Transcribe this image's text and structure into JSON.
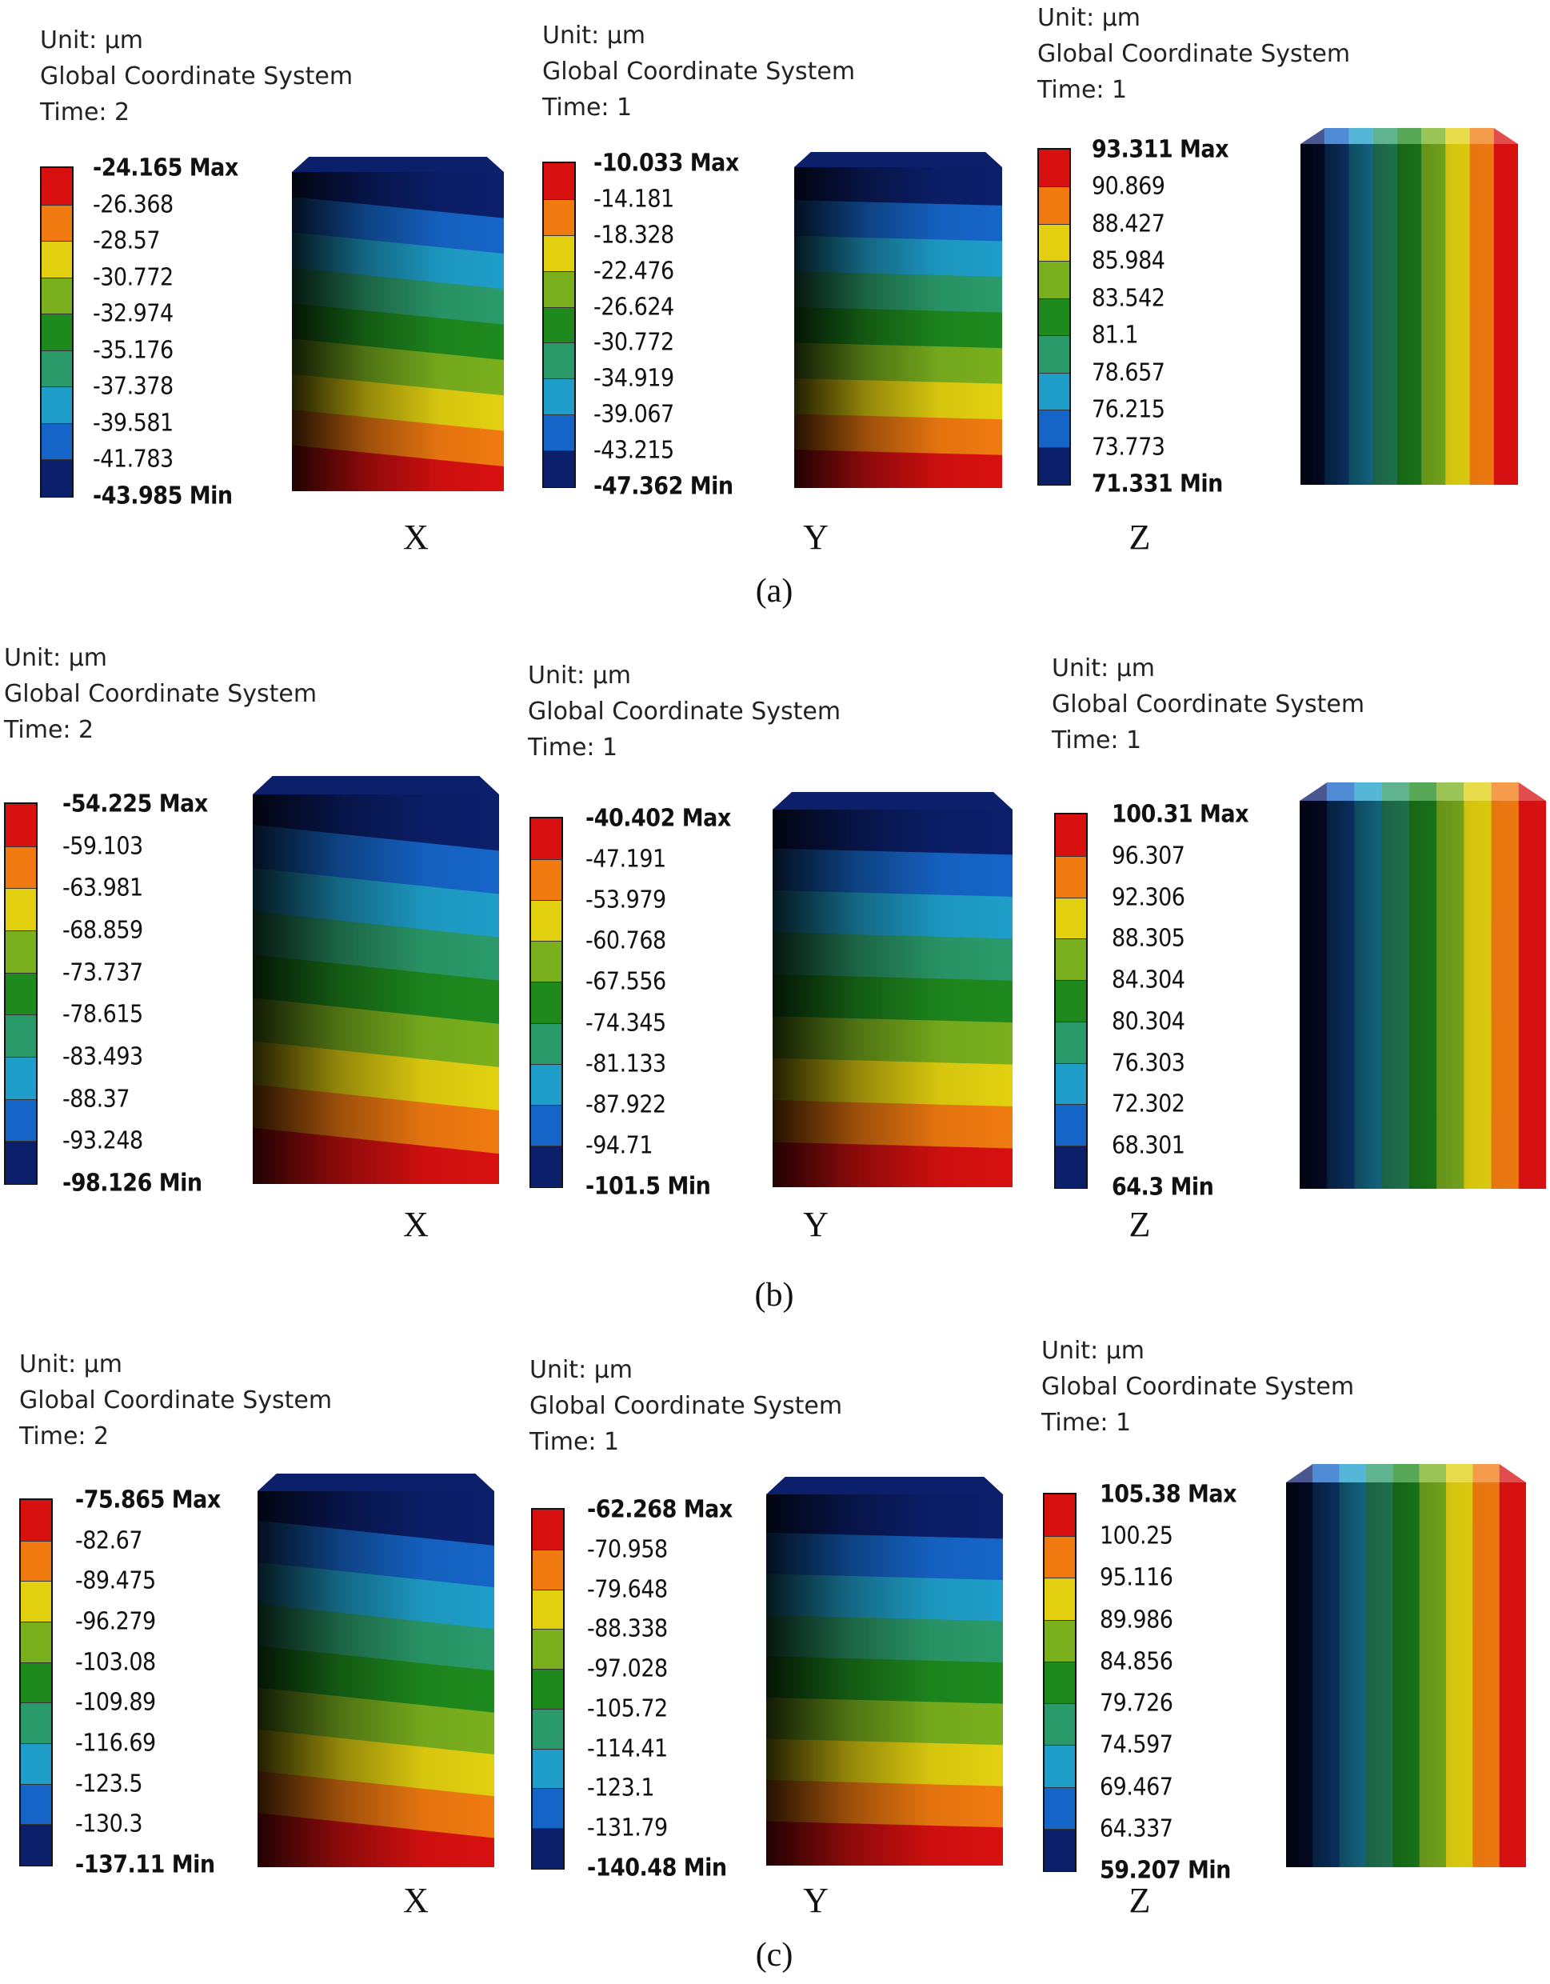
{
  "colors": [
    "#0b1f6b",
    "#1565c8",
    "#1e9ec9",
    "#2a9a6a",
    "#1e8a1e",
    "#7ab01e",
    "#e2d010",
    "#f07a10",
    "#d81010"
  ],
  "figure": {
    "panels": [
      {
        "caption": "(a)",
        "plots": [
          {
            "axis": "X",
            "unit": "Unit: µm",
            "system": "Global Coordinate System",
            "time": "Time: 2",
            "labels": [
              "-24.165 Max",
              "-26.368",
              "-28.57",
              "-30.772",
              "-32.974",
              "-35.176",
              "-37.378",
              "-39.581",
              "-41.783",
              "-43.985 Min"
            ]
          },
          {
            "axis": "Y",
            "unit": "Unit: µm",
            "system": "Global Coordinate System",
            "time": "Time: 1",
            "labels": [
              "-10.033 Max",
              "-14.181",
              "-18.328",
              "-22.476",
              "-26.624",
              "-30.772",
              "-34.919",
              "-39.067",
              "-43.215",
              "-47.362 Min"
            ]
          },
          {
            "axis": "Z",
            "unit": "Unit: µm",
            "system": "Global Coordinate System",
            "time": "Time: 1",
            "labels": [
              "93.311 Max",
              "90.869",
              "88.427",
              "85.984",
              "83.542",
              "81.1",
              "78.657",
              "76.215",
              "73.773",
              "71.331 Min"
            ]
          }
        ]
      },
      {
        "caption": "(b)",
        "plots": [
          {
            "axis": "X",
            "unit": "Unit: µm",
            "system": "Global Coordinate System",
            "time": "Time: 2",
            "labels": [
              "-54.225 Max",
              "-59.103",
              "-63.981",
              "-68.859",
              "-73.737",
              "-78.615",
              "-83.493",
              "-88.37",
              "-93.248",
              "-98.126 Min"
            ]
          },
          {
            "axis": "Y",
            "unit": "Unit: µm",
            "system": "Global Coordinate System",
            "time": "Time: 1",
            "labels": [
              "-40.402 Max",
              "-47.191",
              "-53.979",
              "-60.768",
              "-67.556",
              "-74.345",
              "-81.133",
              "-87.922",
              "-94.71",
              "-101.5 Min"
            ]
          },
          {
            "axis": "Z",
            "unit": "Unit: µm",
            "system": "Global Coordinate System",
            "time": "Time: 1",
            "labels": [
              "100.31 Max",
              "96.307",
              "92.306",
              "88.305",
              "84.304",
              "80.304",
              "76.303",
              "72.302",
              "68.301",
              "64.3 Min"
            ]
          }
        ]
      },
      {
        "caption": "(c)",
        "plots": [
          {
            "axis": "X",
            "unit": "Unit: µm",
            "system": "Global Coordinate System",
            "time": "Time: 2",
            "labels": [
              "-75.865 Max",
              "-82.67",
              "-89.475",
              "-96.279",
              "-103.08",
              "-109.89",
              "-116.69",
              "-123.5",
              "-130.3",
              "-137.11 Min"
            ]
          },
          {
            "axis": "Y",
            "unit": "Unit: µm",
            "system": "Global Coordinate System",
            "time": "Time: 1",
            "labels": [
              "-62.268 Max",
              "-70.958",
              "-79.648",
              "-88.338",
              "-97.028",
              "-105.72",
              "-114.41",
              "-123.1",
              "-131.79",
              "-140.48 Min"
            ]
          },
          {
            "axis": "Z",
            "unit": "Unit: µm",
            "system": "Global Coordinate System",
            "time": "Time: 1",
            "labels": [
              "105.38 Max",
              "100.25",
              "95.116",
              "89.986",
              "84.856",
              "79.726",
              "74.597",
              "69.467",
              "64.337",
              "59.207 Min"
            ]
          }
        ]
      }
    ]
  }
}
